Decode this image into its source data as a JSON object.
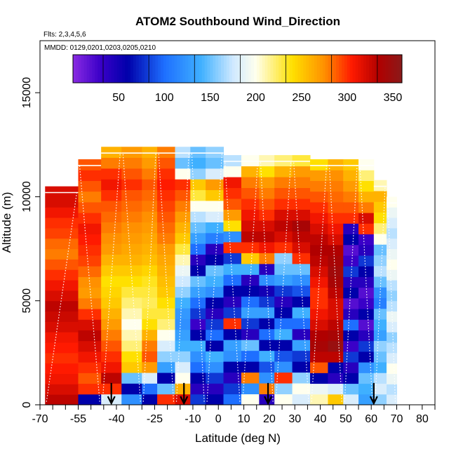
{
  "chart_data": {
    "type": "heatmap",
    "title": "ATOM2 Southbound Wind_Direction",
    "subtitle_flights": "Flts: 2,3,4,5,6",
    "subtitle_dates": "MMDD: 0129,0201,0203,0205,0210",
    "xlabel": "Latitude (deg N)",
    "ylabel": "Altitude (m)",
    "xlim": [
      -70,
      85
    ],
    "ylim": [
      0,
      17500
    ],
    "x_ticks": [
      -70,
      -55,
      -40,
      -25,
      -10,
      0,
      10,
      20,
      30,
      40,
      50,
      60,
      70,
      80
    ],
    "x_tick_labels": [
      "-70",
      "-55",
      "-40",
      "-25",
      "-10",
      "0",
      "10",
      "20",
      "30",
      "40",
      "50",
      "60",
      "70",
      "80"
    ],
    "x_minor_ticks": [
      -65,
      -60,
      -50,
      -45,
      -35,
      -30,
      -20,
      -15,
      -5,
      5,
      15,
      25,
      35,
      45,
      55,
      65,
      75,
      85
    ],
    "y_ticks": [
      0,
      5000,
      10000,
      15000
    ],
    "y_tick_labels": [
      "0",
      "5000",
      "10000",
      "15000"
    ],
    "colorbar": {
      "range": [
        0,
        360
      ],
      "tick_values": [
        50,
        100,
        150,
        200,
        250,
        300,
        350
      ],
      "tick_labels": [
        "50",
        "100",
        "150",
        "200",
        "250",
        "300",
        "350"
      ],
      "stops": [
        {
          "v": 0,
          "color": "#8a2be2"
        },
        {
          "v": 30,
          "color": "#3a00c8"
        },
        {
          "v": 60,
          "color": "#0000aa"
        },
        {
          "v": 100,
          "color": "#1e6fff"
        },
        {
          "v": 140,
          "color": "#3fb0ff"
        },
        {
          "v": 175,
          "color": "#cfe9ff"
        },
        {
          "v": 200,
          "color": "#ffffee"
        },
        {
          "v": 240,
          "color": "#ffe000"
        },
        {
          "v": 275,
          "color": "#ff9000"
        },
        {
          "v": 305,
          "color": "#ff1a00"
        },
        {
          "v": 335,
          "color": "#b00000"
        },
        {
          "v": 360,
          "color": "#8a1a1a"
        }
      ]
    },
    "arrow_latitudes": [
      -42,
      -13.5,
      19.5,
      61
    ],
    "profiles": [
      {
        "lat0": -68,
        "lat1": -55,
        "top": 10500,
        "dirs": [
          330,
          320,
          310,
          305,
          300,
          305,
          310,
          320,
          325,
          330,
          320,
          310,
          300,
          290,
          280,
          285,
          295,
          300,
          310,
          320,
          320
        ]
      },
      {
        "lat0": -55,
        "lat1": -46,
        "top": 11800,
        "dirs": [
          60,
          300,
          290,
          300,
          310,
          320,
          330,
          320,
          300,
          280,
          270,
          275,
          285,
          295,
          300,
          305,
          310,
          300,
          290,
          280,
          290,
          300,
          290
        ]
      },
      {
        "lat0": -46,
        "lat1": -38,
        "top": 12400,
        "dirs": [
          180,
          300,
          330,
          310,
          300,
          290,
          280,
          270,
          260,
          250,
          245,
          240,
          250,
          260,
          270,
          275,
          280,
          285,
          290,
          300,
          310,
          300,
          280,
          260
        ]
      },
      {
        "lat0": -38,
        "lat1": -30,
        "top": 12400,
        "dirs": [
          120,
          60,
          150,
          250,
          240,
          220,
          210,
          200,
          210,
          220,
          230,
          240,
          250,
          260,
          265,
          270,
          275,
          280,
          285,
          290,
          300,
          290,
          280,
          270
        ]
      },
      {
        "lat0": -30,
        "lat1": -24,
        "top": 12400,
        "dirs": [
          60,
          100,
          180,
          270,
          290,
          280,
          260,
          240,
          230,
          225,
          230,
          235,
          245,
          255,
          260,
          265,
          270,
          275,
          280,
          285,
          290,
          280,
          270,
          260
        ]
      },
      {
        "lat0": -24,
        "lat1": -17,
        "top": 12400,
        "dirs": [
          300,
          150,
          60,
          130,
          160,
          180,
          200,
          220,
          230,
          240,
          250,
          255,
          260,
          265,
          270,
          280,
          285,
          290,
          295,
          300,
          305,
          300,
          290,
          280
        ]
      },
      {
        "lat0": -17,
        "lat1": -11,
        "top": 12400,
        "dirs": [
          320,
          260,
          200,
          180,
          160,
          140,
          130,
          120,
          125,
          140,
          160,
          175,
          190,
          210,
          230,
          250,
          260,
          270,
          280,
          290,
          300,
          200,
          150,
          170
        ]
      },
      {
        "lat0": -11,
        "lat1": -5,
        "top": 12400,
        "dirs": [
          80,
          40,
          60,
          100,
          120,
          140,
          60,
          30,
          80,
          100,
          130,
          150,
          60,
          40,
          100,
          130,
          150,
          170,
          200,
          230,
          250,
          160,
          140,
          150
        ]
      },
      {
        "lat0": -5,
        "lat1": 2,
        "top": 12400,
        "dirs": [
          60,
          40,
          80,
          120,
          140,
          60,
          100,
          80,
          40,
          60,
          120,
          140,
          150,
          60,
          40,
          110,
          140,
          180,
          200,
          250,
          270,
          180,
          150,
          160
        ]
      },
      {
        "lat0": 2,
        "lat1": 9,
        "top": 12000,
        "dirs": [
          100,
          80,
          40,
          60,
          120,
          130,
          60,
          300,
          80,
          40,
          60,
          100,
          140,
          80,
          300,
          120,
          240,
          270,
          290,
          300,
          310,
          200,
          170
        ]
      },
      {
        "lat0": 9,
        "lat1": 16,
        "top": 12000,
        "dirs": [
          200,
          120,
          280,
          60,
          100,
          150,
          40,
          80,
          130,
          100,
          60,
          40,
          140,
          250,
          300,
          330,
          320,
          310,
          300,
          290,
          280,
          260,
          200
        ]
      },
      {
        "lat0": 16,
        "lat1": 22,
        "top": 12000,
        "dirs": [
          40,
          280,
          120,
          90,
          140,
          60,
          100,
          60,
          130,
          80,
          50,
          120,
          40,
          280,
          310,
          330,
          320,
          300,
          290,
          280,
          270,
          240,
          210
        ]
      },
      {
        "lat0": 22,
        "lat1": 29,
        "top": 12000,
        "dirs": [
          200,
          160,
          300,
          120,
          90,
          60,
          140,
          100,
          60,
          40,
          80,
          130,
          150,
          160,
          300,
          320,
          330,
          320,
          300,
          290,
          280,
          260,
          220
        ]
      },
      {
        "lat0": 29,
        "lat1": 36,
        "top": 12000,
        "dirs": [
          180,
          200,
          160,
          60,
          80,
          130,
          40,
          100,
          140,
          60,
          90,
          120,
          150,
          300,
          320,
          330,
          340,
          320,
          300,
          290,
          280,
          270,
          230
        ]
      },
      {
        "lat0": 36,
        "lat1": 43,
        "top": 11800,
        "dirs": [
          210,
          190,
          60,
          290,
          330,
          340,
          335,
          320,
          310,
          300,
          300,
          310,
          320,
          330,
          335,
          330,
          320,
          310,
          300,
          290,
          280,
          270,
          240
        ]
      },
      {
        "lat0": 43,
        "lat1": 49,
        "top": 11800,
        "dirs": [
          250,
          180,
          40,
          60,
          330,
          350,
          340,
          330,
          320,
          320,
          330,
          340,
          345,
          340,
          335,
          320,
          310,
          300,
          290,
          285,
          280,
          275,
          260
        ]
      },
      {
        "lat0": 49,
        "lat1": 55,
        "top": 11800,
        "dirs": [
          180,
          150,
          60,
          40,
          80,
          30,
          60,
          100,
          40,
          20,
          60,
          40,
          80,
          30,
          20,
          60,
          40,
          300,
          290,
          280,
          270,
          260,
          250
        ]
      },
      {
        "lat0": 55,
        "lat1": 61,
        "top": 11800,
        "dirs": [
          130,
          140,
          150,
          120,
          60,
          80,
          40,
          20,
          60,
          30,
          20,
          40,
          60,
          80,
          40,
          30,
          300,
          320,
          280,
          260,
          240,
          220,
          200
        ]
      },
      {
        "lat0": 61,
        "lat1": 66,
        "top": 10800,
        "dirs": [
          160,
          180,
          170,
          140,
          150,
          160,
          130,
          140,
          150,
          110,
          120,
          150,
          170,
          160,
          150,
          200,
          220,
          240,
          250,
          260,
          210
        ]
      },
      {
        "lat0": 66,
        "lat1": 70,
        "top": 10000,
        "dirs": [
          180,
          170,
          190,
          200,
          180,
          170,
          160,
          180,
          190,
          170,
          160,
          170,
          190,
          200,
          190,
          180,
          170,
          180,
          190,
          200
        ]
      }
    ]
  }
}
